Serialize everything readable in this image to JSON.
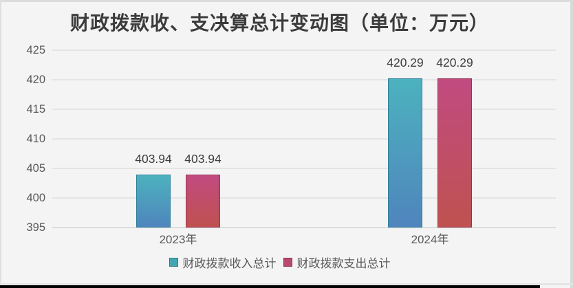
{
  "chart_data": {
    "type": "bar",
    "title": "财政拨款收、支决算总计变动图（单位：万元）",
    "categories": [
      "2023年",
      "2024年"
    ],
    "series": [
      {
        "name": "财政拨款收入总计",
        "values": [
          403.94,
          420.29
        ],
        "labels": [
          "403.94",
          "420.29"
        ],
        "gradient_top": "#4cb2be",
        "gradient_bottom": "#4f85bd",
        "border": "#2f7f99",
        "legend_swatch": "#45a6b3",
        "legend_swatch_border": "#2b7c8c"
      },
      {
        "name": "财政拨款支出总计",
        "values": [
          403.94,
          420.29
        ],
        "labels": [
          "403.94",
          "420.29"
        ],
        "gradient_top": "#c14b80",
        "gradient_bottom": "#bf5150",
        "border": "#97334f",
        "legend_swatch": "#b84a72",
        "legend_swatch_border": "#8f3057"
      }
    ],
    "ylim": [
      395,
      425
    ],
    "yticks": [
      395,
      400,
      405,
      410,
      415,
      420,
      425
    ],
    "grid": true,
    "legend_position": "bottom",
    "data_labels": true
  },
  "colors": {
    "background": "#f4f4f5",
    "gridline": "#e4e4e5",
    "baseline": "#dcdcdd",
    "axis_text": "#595959",
    "data_label_text": "#3d3d3d",
    "title_text": "#3b3b3b",
    "bottom_bar": "#000000"
  }
}
